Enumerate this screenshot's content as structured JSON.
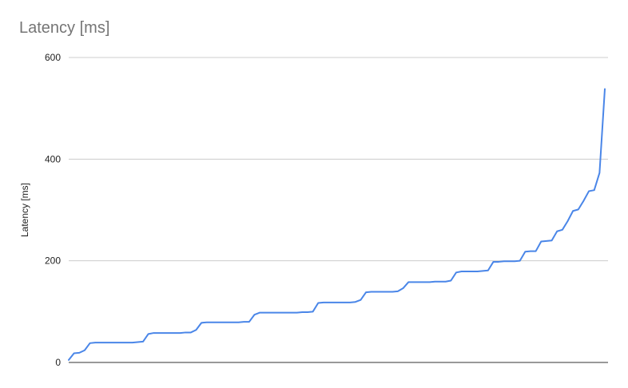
{
  "chart_data": {
    "type": "line",
    "title": "Latency [ms]",
    "xlabel": "",
    "ylabel": "Latency [ms]",
    "ylim": [
      0,
      600
    ],
    "yticks": [
      0,
      200,
      400,
      600
    ],
    "grid": true,
    "legend": "none",
    "colors": {
      "line": "#4a86e8",
      "grid": "#cccccc",
      "baseline": "#333333",
      "title": "#757575",
      "text": "#222222"
    },
    "series": [
      {
        "values": [
          5,
          18,
          19,
          24,
          38,
          39,
          39,
          39,
          39,
          39,
          39,
          39,
          39,
          40,
          41,
          56,
          58,
          58,
          58,
          58,
          58,
          58,
          59,
          59,
          64,
          78,
          79,
          79,
          79,
          79,
          79,
          79,
          79,
          80,
          80,
          94,
          98,
          98,
          98,
          98,
          98,
          98,
          98,
          98,
          99,
          99,
          100,
          117,
          118,
          118,
          118,
          118,
          118,
          118,
          119,
          123,
          138,
          139,
          139,
          139,
          139,
          139,
          140,
          146,
          158,
          158,
          158,
          158,
          158,
          159,
          159,
          159,
          161,
          177,
          179,
          179,
          179,
          179,
          180,
          181,
          198,
          198,
          199,
          199,
          199,
          200,
          218,
          219,
          219,
          238,
          239,
          240,
          258,
          261,
          278,
          298,
          301,
          318,
          337,
          339,
          373,
          538
        ]
      }
    ]
  }
}
